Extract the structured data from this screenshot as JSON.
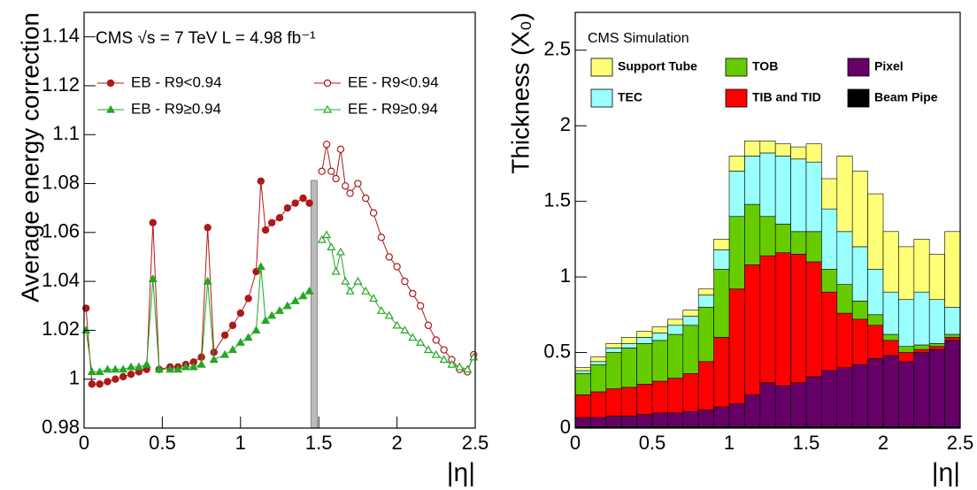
{
  "chart_data": [
    {
      "type": "line",
      "xlabel": "|η|",
      "ylabel": "Average energy correction",
      "annotation": "CMS  √s = 7 TeV   L = 4.98 fb⁻¹",
      "xlim": [
        0,
        2.5
      ],
      "ylim": [
        0.98,
        1.15
      ],
      "xticks": [
        0,
        0.5,
        1,
        1.5,
        2,
        2.5
      ],
      "yticks": [
        0.98,
        1,
        1.02,
        1.04,
        1.06,
        1.08,
        1.1,
        1.12,
        1.14
      ],
      "shaded_region": [
        1.45,
        1.49
      ],
      "series": [
        {
          "name": "EB - R9<0.94",
          "color": "#b01818",
          "marker": "circle",
          "filled": true,
          "x": [
            0.0125,
            0.05,
            0.1,
            0.15,
            0.2,
            0.25,
            0.3,
            0.35,
            0.4,
            0.44,
            0.48,
            0.55,
            0.6,
            0.65,
            0.7,
            0.75,
            0.79,
            0.83,
            0.9,
            0.95,
            1.0,
            1.05,
            1.1,
            1.13,
            1.16,
            1.2,
            1.25,
            1.3,
            1.35,
            1.4,
            1.44
          ],
          "values": [
            1.029,
            0.998,
            0.998,
            0.999,
            1.0,
            1.001,
            1.002,
            1.003,
            1.004,
            1.064,
            1.004,
            1.005,
            1.005,
            1.006,
            1.007,
            1.009,
            1.062,
            1.011,
            1.018,
            1.022,
            1.027,
            1.033,
            1.044,
            1.081,
            1.061,
            1.064,
            1.066,
            1.07,
            1.072,
            1.074,
            1.072
          ]
        },
        {
          "name": "EB - R9≥0.94",
          "color": "#22a822",
          "marker": "triangle",
          "filled": true,
          "x": [
            0.0125,
            0.05,
            0.1,
            0.15,
            0.2,
            0.25,
            0.3,
            0.35,
            0.4,
            0.44,
            0.48,
            0.55,
            0.6,
            0.65,
            0.7,
            0.75,
            0.79,
            0.83,
            0.9,
            0.95,
            1.0,
            1.05,
            1.1,
            1.13,
            1.16,
            1.2,
            1.25,
            1.3,
            1.35,
            1.4,
            1.44
          ],
          "values": [
            1.02,
            1.003,
            1.003,
            1.004,
            1.004,
            1.004,
            1.005,
            1.005,
            1.006,
            1.041,
            1.004,
            1.004,
            1.004,
            1.005,
            1.005,
            1.006,
            1.04,
            1.008,
            1.01,
            1.012,
            1.015,
            1.017,
            1.02,
            1.046,
            1.024,
            1.026,
            1.028,
            1.03,
            1.032,
            1.034,
            1.036
          ]
        },
        {
          "name": "EE - R9<0.94",
          "color": "#b01818",
          "marker": "circle",
          "filled": false,
          "x": [
            1.52,
            1.55,
            1.58,
            1.61,
            1.64,
            1.67,
            1.7,
            1.75,
            1.8,
            1.85,
            1.9,
            1.95,
            2.0,
            2.05,
            2.1,
            2.15,
            2.2,
            2.25,
            2.3,
            2.35,
            2.4,
            2.45,
            2.49
          ],
          "values": [
            1.085,
            1.096,
            1.085,
            1.082,
            1.094,
            1.079,
            1.076,
            1.08,
            1.074,
            1.068,
            1.058,
            1.05,
            1.046,
            1.04,
            1.035,
            1.03,
            1.022,
            1.016,
            1.012,
            1.008,
            1.004,
            1.003,
            1.01
          ]
        },
        {
          "name": "EE - R9≥0.94",
          "color": "#22a822",
          "marker": "triangle",
          "filled": false,
          "x": [
            1.52,
            1.55,
            1.58,
            1.61,
            1.64,
            1.67,
            1.7,
            1.75,
            1.8,
            1.85,
            1.9,
            1.95,
            2.0,
            2.05,
            2.1,
            2.15,
            2.2,
            2.25,
            2.3,
            2.35,
            2.4,
            2.45,
            2.49
          ],
          "values": [
            1.057,
            1.059,
            1.054,
            1.044,
            1.052,
            1.04,
            1.036,
            1.04,
            1.036,
            1.033,
            1.028,
            1.026,
            1.022,
            1.02,
            1.017,
            1.015,
            1.012,
            1.01,
            1.008,
            1.006,
            1.005,
            1.004,
            1.009
          ]
        }
      ]
    },
    {
      "type": "histogram",
      "stacked": true,
      "xlabel": "|η|",
      "ylabel": "Thickness (X₀)",
      "annotation": "CMS Simulation",
      "xlim": [
        0,
        2.5
      ],
      "ylim": [
        0,
        2.75
      ],
      "xticks": [
        0,
        0.5,
        1,
        1.5,
        2,
        2.5
      ],
      "yticks": [
        0,
        0.5,
        1,
        1.5,
        2,
        2.5
      ],
      "bins": [
        0,
        0.1,
        0.2,
        0.3,
        0.4,
        0.5,
        0.6,
        0.7,
        0.8,
        0.9,
        1.0,
        1.1,
        1.2,
        1.3,
        1.4,
        1.5,
        1.6,
        1.7,
        1.8,
        1.9,
        2.0,
        2.1,
        2.2,
        2.3,
        2.4,
        2.5
      ],
      "series": [
        {
          "name": "Beam Pipe",
          "color": "#000000",
          "values": [
            0.01,
            0.01,
            0.01,
            0.01,
            0.01,
            0.01,
            0.01,
            0.01,
            0.01,
            0.01,
            0.01,
            0.01,
            0.01,
            0.01,
            0.01,
            0.01,
            0.01,
            0.01,
            0.01,
            0.01,
            0.01,
            0.01,
            0.01,
            0.01,
            0.01
          ]
        },
        {
          "name": "Pixel",
          "color": "#660066",
          "values": [
            0.06,
            0.06,
            0.07,
            0.07,
            0.08,
            0.09,
            0.09,
            0.1,
            0.11,
            0.13,
            0.15,
            0.21,
            0.29,
            0.27,
            0.29,
            0.33,
            0.37,
            0.39,
            0.41,
            0.45,
            0.47,
            0.43,
            0.49,
            0.51,
            0.57
          ]
        },
        {
          "name": "TIB and TID",
          "color": "#ff0000",
          "values": [
            0.15,
            0.17,
            0.18,
            0.19,
            0.2,
            0.21,
            0.23,
            0.25,
            0.32,
            0.46,
            0.76,
            0.86,
            0.84,
            0.88,
            0.85,
            0.76,
            0.52,
            0.36,
            0.3,
            0.22,
            0.1,
            0.06,
            0.02,
            0.02,
            0.02
          ]
        },
        {
          "name": "TOB",
          "color": "#66cc00",
          "values": [
            0.14,
            0.18,
            0.24,
            0.26,
            0.27,
            0.27,
            0.29,
            0.32,
            0.36,
            0.45,
            0.48,
            0.4,
            0.26,
            0.19,
            0.15,
            0.2,
            0.15,
            0.19,
            0.12,
            0.07,
            0.04,
            0.04,
            0.03,
            0.02,
            0.02
          ]
        },
        {
          "name": "TEC",
          "color": "#99ffff",
          "values": [
            0.02,
            0.02,
            0.03,
            0.03,
            0.04,
            0.05,
            0.06,
            0.06,
            0.08,
            0.13,
            0.3,
            0.32,
            0.42,
            0.45,
            0.48,
            0.46,
            0.4,
            0.35,
            0.36,
            0.3,
            0.28,
            0.31,
            0.35,
            0.29,
            0.18
          ]
        },
        {
          "name": "Support Tube",
          "color": "#ffff77",
          "values": [
            0.02,
            0.03,
            0.03,
            0.04,
            0.04,
            0.04,
            0.04,
            0.04,
            0.04,
            0.07,
            0.1,
            0.1,
            0.08,
            0.08,
            0.08,
            0.12,
            0.2,
            0.5,
            0.5,
            0.5,
            0.4,
            0.35,
            0.35,
            0.3,
            0.5
          ]
        }
      ]
    }
  ]
}
